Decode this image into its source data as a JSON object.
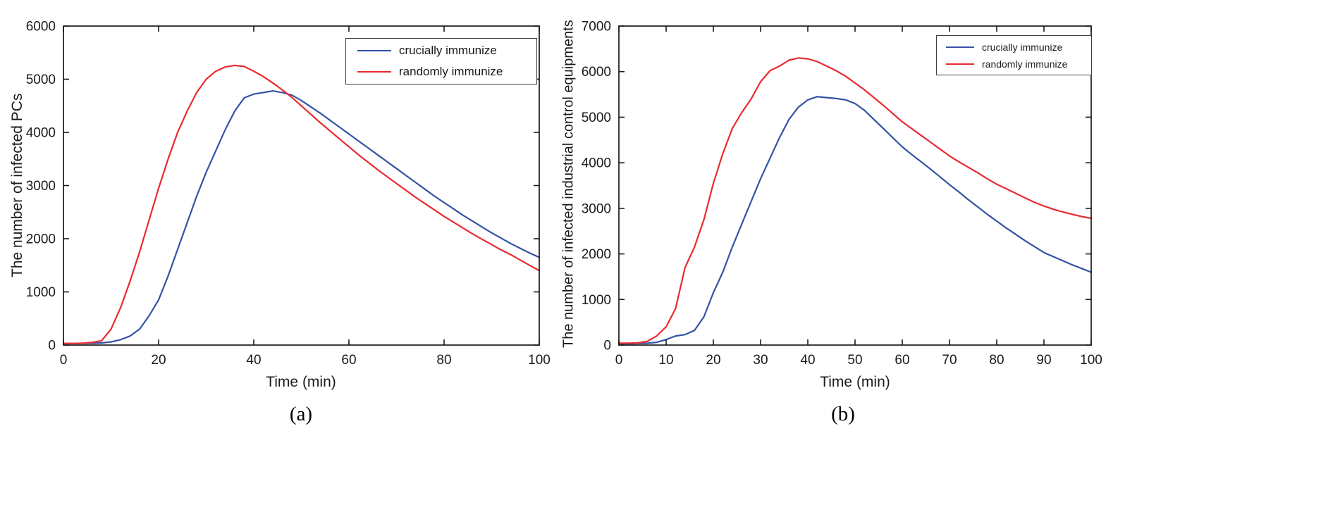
{
  "figure": {
    "background": "#ffffff",
    "axis_color": "#1a1a1a",
    "line_colors": {
      "crucially_immunize": "#3353a4",
      "randomly_immunize": "#e92a30"
    }
  },
  "chart_data": [
    {
      "id": "a",
      "type": "line",
      "caption": "(a)",
      "xlabel": "Time (min)",
      "ylabel": "The number of infected PCs",
      "xlim": [
        0,
        100
      ],
      "ylim": [
        0,
        6000
      ],
      "xticks": [
        0,
        20,
        40,
        60,
        80,
        100
      ],
      "yticks": [
        0,
        1000,
        2000,
        3000,
        4000,
        5000,
        6000
      ],
      "grid": false,
      "legend_position": "top-right",
      "x": [
        0,
        2,
        4,
        6,
        8,
        10,
        12,
        14,
        16,
        18,
        20,
        22,
        24,
        26,
        28,
        30,
        32,
        34,
        36,
        38,
        40,
        42,
        44,
        46,
        48,
        50,
        52,
        54,
        56,
        58,
        60,
        62,
        64,
        66,
        68,
        70,
        72,
        74,
        76,
        78,
        80,
        82,
        84,
        86,
        88,
        90,
        92,
        94,
        96,
        98,
        100
      ],
      "series": [
        {
          "name": "crucially immunize",
          "color": "#3353a4",
          "values": [
            30,
            30,
            30,
            35,
            40,
            60,
            100,
            170,
            300,
            550,
            850,
            1300,
            1800,
            2300,
            2800,
            3250,
            3650,
            4050,
            4400,
            4650,
            4720,
            4750,
            4780,
            4750,
            4700,
            4600,
            4480,
            4360,
            4230,
            4100,
            3970,
            3840,
            3710,
            3580,
            3450,
            3320,
            3190,
            3060,
            2930,
            2800,
            2680,
            2560,
            2440,
            2330,
            2220,
            2110,
            2010,
            1910,
            1820,
            1730,
            1650
          ]
        },
        {
          "name": "randomly immunize",
          "color": "#e92a30",
          "values": [
            30,
            30,
            35,
            50,
            80,
            300,
            700,
            1200,
            1750,
            2350,
            2950,
            3500,
            4000,
            4400,
            4750,
            5000,
            5150,
            5230,
            5260,
            5240,
            5150,
            5050,
            4930,
            4800,
            4660,
            4500,
            4340,
            4180,
            4030,
            3880,
            3730,
            3580,
            3440,
            3300,
            3170,
            3040,
            2910,
            2780,
            2660,
            2540,
            2420,
            2310,
            2200,
            2090,
            1990,
            1890,
            1790,
            1700,
            1600,
            1500,
            1400
          ]
        }
      ]
    },
    {
      "id": "b",
      "type": "line",
      "caption": "(b)",
      "xlabel": "Time (min)",
      "ylabel": "The number of infected industrial control equipments",
      "xlim": [
        0,
        100
      ],
      "ylim": [
        0,
        7000
      ],
      "xticks": [
        0,
        10,
        20,
        30,
        40,
        50,
        60,
        70,
        80,
        90,
        100
      ],
      "yticks": [
        0,
        1000,
        2000,
        3000,
        4000,
        5000,
        6000,
        7000
      ],
      "grid": false,
      "legend_position": "top-right",
      "x": [
        0,
        2,
        4,
        6,
        8,
        10,
        12,
        14,
        16,
        18,
        20,
        22,
        24,
        26,
        28,
        30,
        32,
        34,
        36,
        38,
        40,
        42,
        44,
        46,
        48,
        50,
        52,
        54,
        56,
        58,
        60,
        62,
        64,
        66,
        68,
        70,
        72,
        74,
        76,
        78,
        80,
        82,
        84,
        86,
        88,
        90,
        92,
        94,
        96,
        98,
        100
      ],
      "series": [
        {
          "name": "crucially immunize",
          "color": "#3353a4",
          "values": [
            30,
            30,
            35,
            40,
            60,
            120,
            200,
            230,
            320,
            620,
            1150,
            1600,
            2150,
            2650,
            3150,
            3650,
            4100,
            4550,
            4950,
            5220,
            5380,
            5450,
            5430,
            5410,
            5380,
            5300,
            5150,
            4950,
            4750,
            4550,
            4350,
            4180,
            4020,
            3860,
            3690,
            3520,
            3360,
            3190,
            3030,
            2870,
            2720,
            2570,
            2430,
            2290,
            2160,
            2030,
            1940,
            1850,
            1760,
            1680,
            1600
          ]
        },
        {
          "name": "randomly immunize",
          "color": "#e92a30",
          "values": [
            40,
            40,
            50,
            80,
            200,
            400,
            800,
            1700,
            2150,
            2750,
            3550,
            4200,
            4750,
            5100,
            5400,
            5780,
            6020,
            6120,
            6250,
            6300,
            6280,
            6220,
            6120,
            6020,
            5900,
            5750,
            5600,
            5430,
            5260,
            5080,
            4900,
            4750,
            4600,
            4450,
            4300,
            4150,
            4020,
            3900,
            3780,
            3650,
            3530,
            3430,
            3330,
            3230,
            3130,
            3050,
            2980,
            2920,
            2870,
            2820,
            2780
          ]
        }
      ]
    }
  ]
}
